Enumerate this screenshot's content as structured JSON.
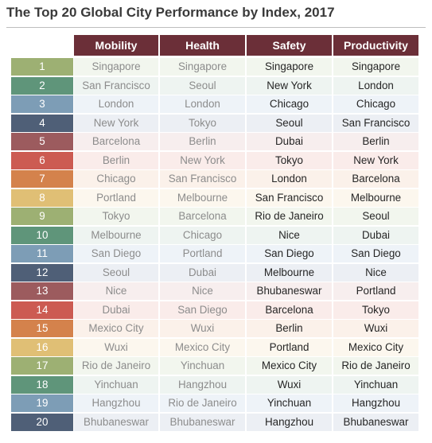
{
  "chart_data": {
    "type": "table",
    "title": "The Top 20 Global City Performance by Index, 2017",
    "columns": [
      "Mobility",
      "Health",
      "Safety",
      "Productivity"
    ],
    "ranks": [
      "1",
      "2",
      "3",
      "4",
      "5",
      "6",
      "7",
      "8",
      "9",
      "10",
      "11",
      "12",
      "13",
      "14",
      "15",
      "16",
      "17",
      "18",
      "19",
      "20"
    ],
    "rows": [
      [
        "Singapore",
        "Singapore",
        "Singapore",
        "Singapore"
      ],
      [
        "San Francisco",
        "Seoul",
        "New York",
        "London"
      ],
      [
        "London",
        "London",
        "Chicago",
        "Chicago"
      ],
      [
        "New York",
        "Tokyo",
        "Seoul",
        "San Francisco"
      ],
      [
        "Barcelona",
        "Berlin",
        "Dubai",
        "Berlin"
      ],
      [
        "Berlin",
        "New York",
        "Tokyo",
        "New York"
      ],
      [
        "Chicago",
        "San Francisco",
        "London",
        "Barcelona"
      ],
      [
        "Portland",
        "Melbourne",
        "San Francisco",
        "Melbourne"
      ],
      [
        "Tokyo",
        "Barcelona",
        "Rio de Janeiro",
        "Seoul"
      ],
      [
        "Melbourne",
        "Chicago",
        "Nice",
        "Dubai"
      ],
      [
        "San Diego",
        "Portland",
        "San Diego",
        "San Diego"
      ],
      [
        "Seoul",
        "Dubai",
        "Melbourne",
        "Nice"
      ],
      [
        "Nice",
        "Nice",
        "Bhubaneswar",
        "Portland"
      ],
      [
        "Dubai",
        "San Diego",
        "Barcelona",
        "Tokyo"
      ],
      [
        "Mexico City",
        "Wuxi",
        "Berlin",
        "Wuxi"
      ],
      [
        "Wuxi",
        "Mexico City",
        "Portland",
        "Mexico City"
      ],
      [
        "Rio de Janeiro",
        "Yinchuan",
        "Mexico City",
        "Rio de Janeiro"
      ],
      [
        "Yinchuan",
        "Hangzhou",
        "Wuxi",
        "Yinchuan"
      ],
      [
        "Hangzhou",
        "Rio de Janeiro",
        "Yinchuan",
        "Hangzhou"
      ],
      [
        "Bhubaneswar",
        "Bhubaneswar",
        "Hangzhou",
        "Bhubaneswar"
      ]
    ],
    "rank_colors": [
      "#9db073",
      "#5f957a",
      "#7d9db6",
      "#4f5f77",
      "#9c5b5e",
      "#cc5b52",
      "#d4824c",
      "#e0bf75"
    ],
    "row_tints": [
      "#f2f6ee",
      "#eef4f1",
      "#eef3f8",
      "#eceff4",
      "#f7eeee",
      "#faecea",
      "#fbf1ea",
      "#fcf7ee"
    ],
    "header_color": "#6b2f38"
  }
}
